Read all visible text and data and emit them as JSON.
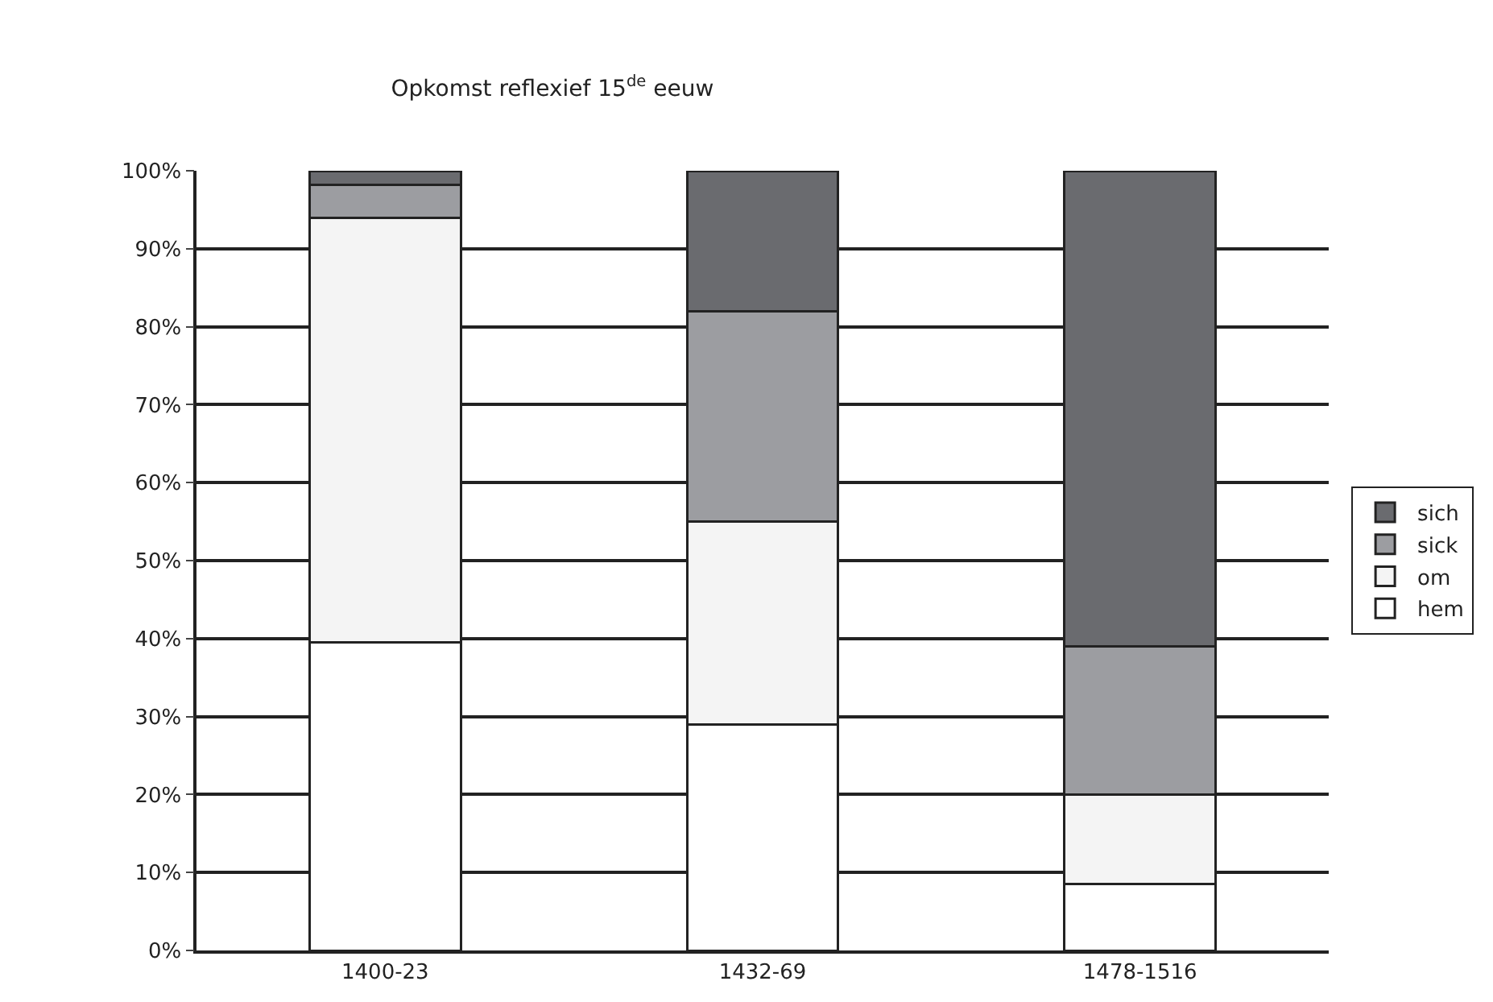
{
  "chart_data": {
    "type": "bar",
    "title": "Opkomst reflexief 15$^{de}$ eeuw",
    "stacked": true,
    "categories": [
      "1400-23",
      "1432-69",
      "1478-1516"
    ],
    "series": [
      {
        "name": "hem",
        "color": "#ffffff",
        "values": [
          39.5,
          29,
          8.5
        ]
      },
      {
        "name": "om",
        "color": "#f4f4f4",
        "values": [
          54.5,
          26,
          11.5
        ]
      },
      {
        "name": "sick",
        "color": "#9c9da1",
        "values": [
          4.2,
          27,
          19
        ]
      },
      {
        "name": "sich",
        "color": "#6a6b6f",
        "values": [
          1.8,
          18,
          61
        ]
      }
    ],
    "ylim": [
      0,
      100
    ],
    "yticks": [
      {
        "value": 0,
        "label": "0%"
      },
      {
        "value": 10,
        "label": "10%"
      },
      {
        "value": 20,
        "label": "20%"
      },
      {
        "value": 30,
        "label": "30%"
      },
      {
        "value": 40,
        "label": "40%"
      },
      {
        "value": 50,
        "label": "50%"
      },
      {
        "value": 60,
        "label": "60%"
      },
      {
        "value": 70,
        "label": "70%"
      },
      {
        "value": 80,
        "label": "80%"
      },
      {
        "value": 90,
        "label": "90%"
      },
      {
        "value": 100,
        "label": "100%"
      }
    ],
    "grid": "y",
    "legend": "right"
  }
}
